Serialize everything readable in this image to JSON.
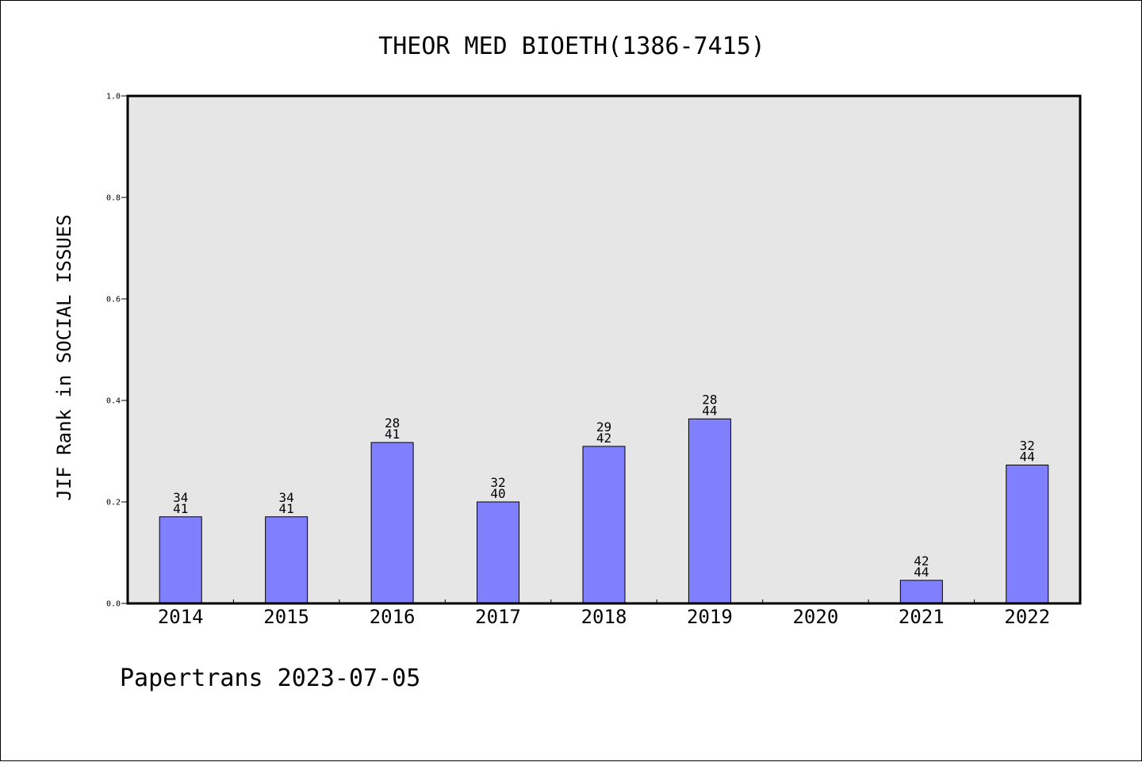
{
  "chart_data": {
    "type": "bar",
    "title": "THEOR MED BIOETH(1386-7415)",
    "ylabel": "JIF Rank in SOCIAL ISSUES",
    "xlabel": "",
    "ylim": [
      0,
      1.0
    ],
    "yticks": [
      "0.0",
      "0.2",
      "0.4",
      "0.6",
      "0.8",
      "1.0"
    ],
    "categories": [
      "2014",
      "2015",
      "2016",
      "2017",
      "2018",
      "2019",
      "2020",
      "2021",
      "2022"
    ],
    "bars": [
      {
        "year": "2014",
        "rank": "34",
        "total": "41",
        "value": 0.1707
      },
      {
        "year": "2015",
        "rank": "34",
        "total": "41",
        "value": 0.1707
      },
      {
        "year": "2016",
        "rank": "28",
        "total": "41",
        "value": 0.3171
      },
      {
        "year": "2017",
        "rank": "32",
        "total": "40",
        "value": 0.2
      },
      {
        "year": "2018",
        "rank": "29",
        "total": "42",
        "value": 0.3095
      },
      {
        "year": "2019",
        "rank": "28",
        "total": "44",
        "value": 0.3636
      },
      {
        "year": "2020",
        "rank": null,
        "total": null,
        "value": null
      },
      {
        "year": "2021",
        "rank": "42",
        "total": "44",
        "value": 0.0455
      },
      {
        "year": "2022",
        "rank": "32",
        "total": "44",
        "value": 0.2727
      }
    ],
    "colors": {
      "bar": "#8080ff",
      "plot_background": "#e6e6e6",
      "axis": "#000000"
    },
    "grid": false,
    "footer": "Papertrans 2023-07-05"
  }
}
